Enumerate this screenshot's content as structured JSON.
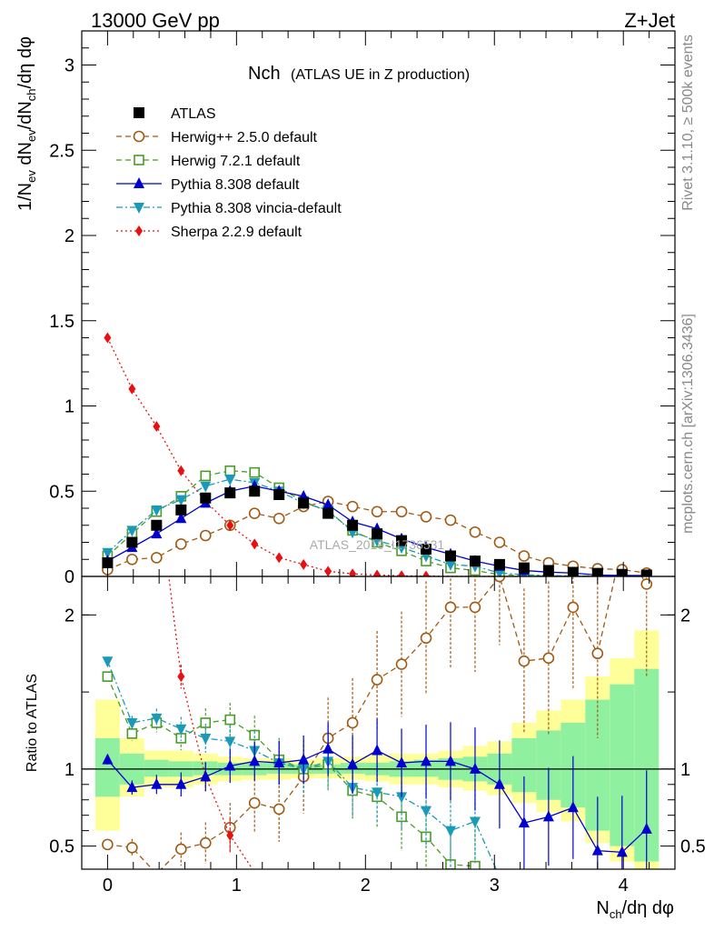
{
  "header": {
    "left": "13000 GeV pp",
    "right": "Z+Jet"
  },
  "side_labels": {
    "rivet": "Rivet 3.1.10, ≥ 500k events",
    "mcplots": "mcplots.cern.ch [arXiv:1306.3436]"
  },
  "watermark": "ATLAS_2019_I1736531",
  "chart_data": {
    "type": "line",
    "title_main": "Nch",
    "title_sub": "(ATLAS UE in Z production)",
    "xlabel": "N_ch/dη dφ",
    "ylabel": "1/N_ev dN_ev/dN_ch/dη dφ",
    "ratio_ylabel": "Ratio to ATLAS",
    "xlim": [
      -0.2,
      4.4
    ],
    "ylim_main": [
      0,
      3.2
    ],
    "ylim_ratio": [
      0.35,
      2.25
    ],
    "x_ticks": [
      "0",
      "1",
      "2",
      "3",
      "4"
    ],
    "main_y_ticks": [
      "0",
      "0.5",
      "1",
      "1.5",
      "2",
      "2.5",
      "3"
    ],
    "ratio_y_ticks": [
      "0.5",
      "1",
      "2"
    ],
    "x": [
      0,
      0.19,
      0.38,
      0.57,
      0.76,
      0.95,
      1.14,
      1.33,
      1.52,
      1.71,
      1.9,
      2.09,
      2.28,
      2.47,
      2.66,
      2.85,
      3.04,
      3.23,
      3.42,
      3.61,
      3.8,
      3.99,
      4.18
    ],
    "series": [
      {
        "name": "ATLAS",
        "color": "#000000",
        "marker": "square-filled",
        "dash": "none",
        "values": [
          0.08,
          0.2,
          0.3,
          0.39,
          0.46,
          0.49,
          0.5,
          0.48,
          0.43,
          0.37,
          0.3,
          0.25,
          0.21,
          0.16,
          0.12,
          0.09,
          0.07,
          0.05,
          0.035,
          0.024,
          0.018,
          0.012,
          0.008
        ],
        "ratio": [
          1,
          1,
          1,
          1,
          1,
          1,
          1,
          1,
          1,
          1,
          1,
          1,
          1,
          1,
          1,
          1,
          1,
          1,
          1,
          1,
          1,
          1,
          1
        ]
      },
      {
        "name": "Herwig++ 2.5.0 default",
        "color": "#a05a14",
        "marker": "circle-open",
        "dash": "6,4",
        "values": [
          0.04,
          0.1,
          0.11,
          0.19,
          0.24,
          0.3,
          0.37,
          0.34,
          0.41,
          0.44,
          0.41,
          0.38,
          0.38,
          0.35,
          0.33,
          0.26,
          0.2,
          0.12,
          0.08,
          0.06,
          0.045,
          0.04,
          0.02
        ],
        "ratio": [
          0.51,
          0.49,
          0.32,
          0.48,
          0.52,
          0.62,
          0.78,
          0.74,
          0.95,
          1.2,
          1.3,
          1.58,
          1.68,
          1.85,
          2.05,
          2.05,
          2.25,
          1.7,
          1.72,
          2.05,
          1.75,
          2.45,
          2.2
        ]
      },
      {
        "name": "Herwig 7.2.1 default",
        "color": "#4a9b28",
        "marker": "square-open",
        "dash": "6,4",
        "values": [
          0.12,
          0.25,
          0.38,
          0.47,
          0.59,
          0.62,
          0.61,
          0.52,
          0.44,
          0.38,
          0.27,
          0.2,
          0.15,
          0.09,
          0.05,
          0.035,
          0.01,
          0.006,
          0.003,
          0.001,
          0.0005,
          0.0002,
          0.0001
        ],
        "ratio": [
          1.6,
          1.23,
          1.3,
          1.2,
          1.3,
          1.32,
          1.22,
          1.06,
          1.0,
          1.03,
          0.86,
          0.82,
          0.69,
          0.56,
          0.38,
          0.37,
          0.1,
          0.05,
          0.02,
          0.01,
          0.005,
          0.002,
          0.001
        ]
      },
      {
        "name": "Pythia 8.308 default",
        "color": "#0000d0",
        "marker": "triangle-up",
        "dash": "none",
        "values": [
          0.09,
          0.17,
          0.25,
          0.34,
          0.43,
          0.5,
          0.53,
          0.5,
          0.47,
          0.42,
          0.32,
          0.28,
          0.22,
          0.17,
          0.13,
          0.09,
          0.06,
          0.035,
          0.025,
          0.02,
          0.008,
          0.006,
          0.005
        ],
        "ratio": [
          1.06,
          0.88,
          0.9,
          0.9,
          0.95,
          1.02,
          1.05,
          1.04,
          1.06,
          1.13,
          1.03,
          1.12,
          1.04,
          1.05,
          1.05,
          1.0,
          0.9,
          0.65,
          0.69,
          0.75,
          0.47,
          0.46,
          0.61
        ]
      },
      {
        "name": "Pythia 8.308 vincia-default",
        "color": "#1a9ab8",
        "marker": "triangle-down",
        "dash": "7,3,2,3",
        "values": [
          0.14,
          0.27,
          0.39,
          0.45,
          0.53,
          0.57,
          0.55,
          0.5,
          0.43,
          0.39,
          0.26,
          0.21,
          0.17,
          0.12,
          0.07,
          0.06,
          0.02,
          0.01,
          0.005,
          0.003,
          0.002,
          0.001,
          0.0005
        ],
        "ratio": [
          1.7,
          1.3,
          1.33,
          1.26,
          1.2,
          1.18,
          1.12,
          1.04,
          1.0,
          1.05,
          0.88,
          0.85,
          0.82,
          0.73,
          0.6,
          0.66,
          0.3,
          0.2,
          0.14,
          0.12,
          0.1,
          0.08,
          0.06
        ]
      },
      {
        "name": "Sherpa 2.2.9 default",
        "color": "#e81010",
        "marker": "diamond",
        "dash": "2,3",
        "values": [
          1.4,
          1.1,
          0.88,
          0.62,
          0.44,
          0.3,
          0.19,
          0.11,
          0.07,
          0.03,
          0.015,
          0.008,
          0.004,
          0.002,
          0.001,
          0.0005,
          0.0002,
          0.0001,
          0.0001,
          0.0001,
          0.0001,
          0.0001,
          0.0001
        ],
        "ratio": [
          17,
          5.5,
          2.9,
          1.6,
          0.95,
          0.57,
          0.33,
          0.23,
          0.16,
          0.08,
          0.05,
          0.03,
          0.02,
          0.01,
          0.008,
          0.005,
          0.003,
          0.002,
          0.002,
          0.002,
          0.002,
          0.002,
          0.002
        ]
      }
    ],
    "uncertainty_band_inner": [
      [
        0.82,
        1.2
      ],
      [
        0.9,
        1.1
      ],
      [
        0.95,
        1.06
      ],
      [
        0.95,
        1.05
      ],
      [
        0.96,
        1.05
      ],
      [
        0.96,
        1.04
      ],
      [
        0.96,
        1.04
      ],
      [
        0.97,
        1.04
      ],
      [
        0.97,
        1.03
      ],
      [
        0.97,
        1.03
      ],
      [
        0.97,
        1.04
      ],
      [
        0.96,
        1.04
      ],
      [
        0.95,
        1.05
      ],
      [
        0.95,
        1.06
      ],
      [
        0.93,
        1.07
      ],
      [
        0.92,
        1.08
      ],
      [
        0.9,
        1.1
      ],
      [
        0.85,
        1.2
      ],
      [
        0.8,
        1.25
      ],
      [
        0.75,
        1.3
      ],
      [
        0.6,
        1.45
      ],
      [
        0.5,
        1.55
      ],
      [
        0.4,
        1.65
      ]
    ],
    "uncertainty_band_outer": [
      [
        0.6,
        1.45
      ],
      [
        0.82,
        1.2
      ],
      [
        0.88,
        1.12
      ],
      [
        0.88,
        1.12
      ],
      [
        0.9,
        1.1
      ],
      [
        0.92,
        1.08
      ],
      [
        0.93,
        1.07
      ],
      [
        0.93,
        1.07
      ],
      [
        0.94,
        1.06
      ],
      [
        0.94,
        1.07
      ],
      [
        0.93,
        1.08
      ],
      [
        0.92,
        1.09
      ],
      [
        0.9,
        1.1
      ],
      [
        0.9,
        1.1
      ],
      [
        0.88,
        1.12
      ],
      [
        0.86,
        1.15
      ],
      [
        0.83,
        1.18
      ],
      [
        0.78,
        1.3
      ],
      [
        0.72,
        1.38
      ],
      [
        0.66,
        1.45
      ],
      [
        0.52,
        1.6
      ],
      [
        0.4,
        1.72
      ],
      [
        0.3,
        1.9
      ]
    ]
  }
}
